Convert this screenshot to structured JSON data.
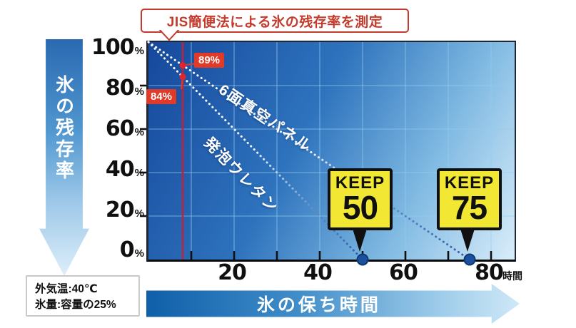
{
  "title": "JIS簡便法による氷の残存率を測定",
  "left_axis_arrow": "氷の残存率",
  "bottom_axis_arrow": "氷の保ち時間",
  "x_unit": "時間",
  "conditions": {
    "line1": "外気温:40℃",
    "line2": "氷量:容量の25%"
  },
  "badges": {
    "keep50": {
      "word": "KEEP",
      "value": "50"
    },
    "keep75": {
      "word": "KEEP",
      "value": "75"
    }
  },
  "callouts": {
    "vacuum_pct": "89%",
    "urethane_pct": "84%"
  },
  "colors": {
    "accent_red": "#c43a2c",
    "callout_red": "#e23a28",
    "measure_line_red": "#c72135",
    "badge_yellow": "#f2e833",
    "plot_blue_dark": "#16489c",
    "plot_blue_light": "#d9edfa",
    "end_dot_blue": "#1d4f9f"
  },
  "chart_data": {
    "type": "line",
    "title": "JIS簡便法による氷の残存率を測定",
    "xlabel": "氷の保ち時間 (時間)",
    "ylabel": "氷の残存率 (%)",
    "xlim": [
      0,
      85.5
    ],
    "ylim": [
      0,
      100
    ],
    "grid": true,
    "x_grid_step": 10,
    "y_grid_step": 20,
    "x_tick_labels": [
      "20",
      "40",
      "60",
      "80"
    ],
    "y_tick_labels": [
      {
        "num": "100",
        "suffix": "%"
      },
      {
        "num": "80",
        "suffix": "%"
      },
      {
        "num": "60",
        "suffix": "%"
      },
      {
        "num": "40",
        "suffix": "%"
      },
      {
        "num": "20",
        "suffix": "%"
      },
      {
        "num": "0",
        "suffix": "%"
      }
    ],
    "series": [
      {
        "name": "6面真空パネル",
        "points": [
          [
            0,
            100
          ],
          [
            8,
            89.3
          ],
          [
            75,
            0
          ]
        ],
        "keep_hours": 75,
        "style": "dotted"
      },
      {
        "name": "発泡ウレタン",
        "points": [
          [
            0,
            100
          ],
          [
            8,
            84
          ],
          [
            50,
            0
          ]
        ],
        "keep_hours": 50,
        "style": "dotted"
      }
    ],
    "measurement": {
      "line_x": 8,
      "points": [
        {
          "x": 8,
          "y": 89.3,
          "label": "89%"
        },
        {
          "x": 8,
          "y": 84,
          "label": "84%"
        }
      ]
    },
    "conditions": [
      "外気温:40℃",
      "氷量:容量の25%"
    ]
  }
}
